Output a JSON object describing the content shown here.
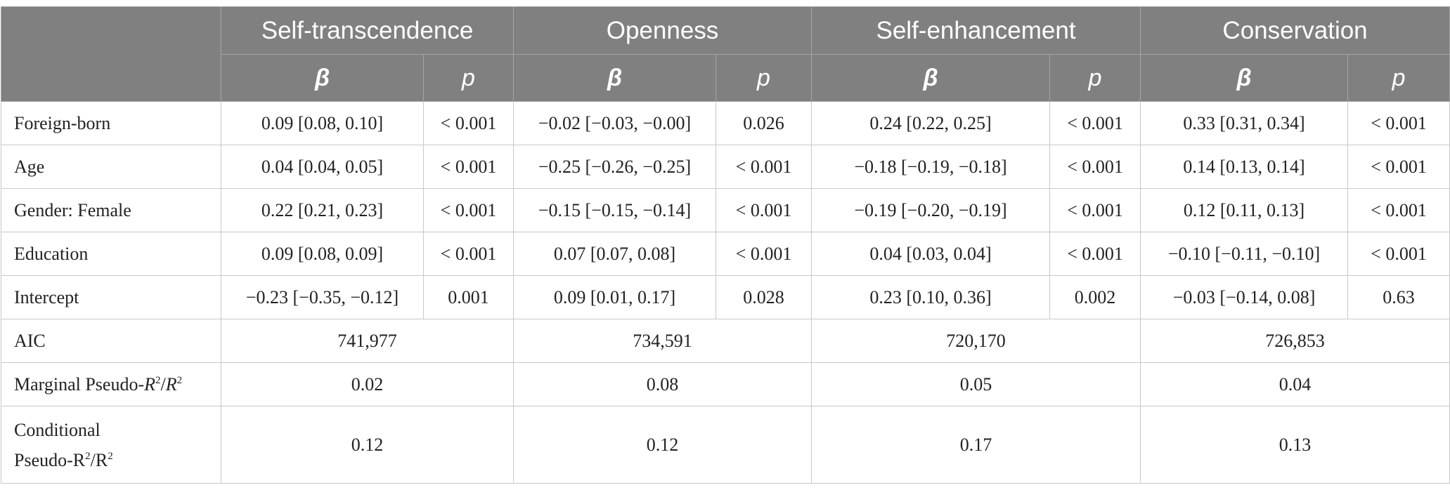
{
  "header": {
    "groups": [
      "Self-transcendence",
      "Openness",
      "Self-enhancement",
      "Conservation"
    ],
    "beta_label": "β",
    "p_label": "p"
  },
  "rows": [
    {
      "label": "Foreign-born",
      "values": [
        "0.09 [0.08, 0.10]",
        "< 0.001",
        "−0.02 [−0.03, −0.00]",
        "0.026",
        "0.24 [0.22, 0.25]",
        "< 0.001",
        "0.33 [0.31, 0.34]",
        "< 0.001"
      ]
    },
    {
      "label": "Age",
      "values": [
        "0.04 [0.04, 0.05]",
        "< 0.001",
        "−0.25 [−0.26, −0.25]",
        "< 0.001",
        "−0.18 [−0.19, −0.18]",
        "< 0.001",
        "0.14 [0.13, 0.14]",
        "< 0.001"
      ]
    },
    {
      "label": "Gender: Female",
      "values": [
        "0.22 [0.21, 0.23]",
        "< 0.001",
        "−0.15 [−0.15, −0.14]",
        "< 0.001",
        "−0.19 [−0.20, −0.19]",
        "< 0.001",
        "0.12 [0.11, 0.13]",
        "< 0.001"
      ]
    },
    {
      "label": "Education",
      "values": [
        "0.09 [0.08, 0.09]",
        "< 0.001",
        "0.07 [0.07, 0.08]",
        "< 0.001",
        "0.04 [0.03, 0.04]",
        "< 0.001",
        "−0.10 [−0.11, −0.10]",
        "< 0.001"
      ]
    },
    {
      "label": "Intercept",
      "values": [
        "−0.23 [−0.35, −0.12]",
        "0.001",
        "0.09 [0.01, 0.17]",
        "0.028",
        "0.23 [0.10, 0.36]",
        "0.002",
        "−0.03 [−0.14, 0.08]",
        "0.63"
      ]
    }
  ],
  "aic": {
    "label": "AIC",
    "values": [
      "741,977",
      "734,591",
      "720,170",
      "726,853"
    ]
  },
  "marginal": {
    "label_prefix": "Marginal Pseudo-",
    "label_r": "R",
    "label_sup": "2",
    "label_slash": "/",
    "values": [
      "0.02",
      "0.08",
      "0.05",
      "0.04"
    ]
  },
  "conditional": {
    "label_line1": "Conditional",
    "label_line2": "Pseudo-R",
    "label_sup": "2",
    "label_mid": "/R",
    "values": [
      "0.12",
      "0.12",
      "0.17",
      "0.13"
    ]
  }
}
